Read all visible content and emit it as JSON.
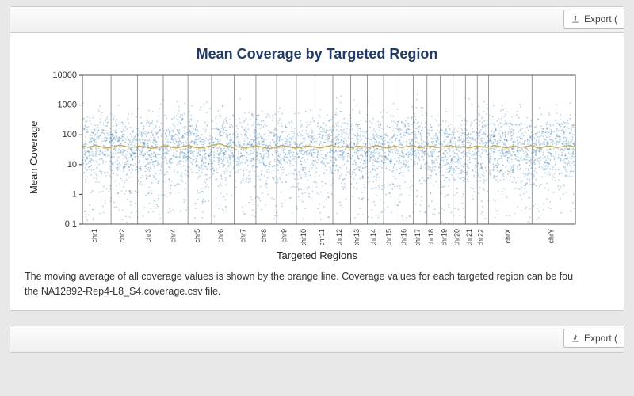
{
  "export_label": "Export (",
  "chart": {
    "type": "scatter",
    "title": "Mean Coverage by Targeted Region",
    "title_color": "#1f3a6e",
    "title_fontsize": 18,
    "ylabel": "Mean Coverage",
    "xlabel": "Targeted Regions",
    "yscale": "log",
    "ylim": [
      0.1,
      10000
    ],
    "yticks": [
      0.1,
      1,
      10,
      100,
      1000,
      10000
    ],
    "ytick_labels": [
      "0.1",
      "1",
      "10",
      "100",
      "1000",
      "10000"
    ],
    "chromosomes": [
      "chr1",
      "chr2",
      "chr3",
      "chr4",
      "chr5",
      "chr6",
      "chr7",
      "chr8",
      "chr9",
      "chr10",
      "chr11",
      "chr12",
      "chr13",
      "chr14",
      "chr15",
      "chr16",
      "chr17",
      "chr18",
      "chr19",
      "chr20",
      "chr21",
      "chr22",
      "chrX",
      "chrY"
    ],
    "chr_boundaries_x": [
      0.058,
      0.112,
      0.164,
      0.214,
      0.262,
      0.308,
      0.352,
      0.394,
      0.434,
      0.472,
      0.508,
      0.544,
      0.578,
      0.611,
      0.642,
      0.671,
      0.699,
      0.726,
      0.752,
      0.777,
      0.801,
      0.824,
      0.912,
      1.0
    ],
    "point_color": "#2b7bba",
    "point_opacity": 0.35,
    "point_radius": 0.9,
    "n_points": 5200,
    "avg_line_color": "#c9a84a",
    "avg_line_width": 1.4,
    "avg_line_y": [
      42,
      38,
      44,
      40,
      36,
      40,
      45,
      40,
      38,
      42,
      40,
      35,
      38,
      42,
      40,
      36,
      40,
      44,
      38,
      36,
      40,
      45,
      50,
      42,
      38,
      40,
      36,
      40,
      42,
      38,
      34,
      40,
      44,
      40,
      36,
      38,
      42,
      40,
      36,
      40,
      44,
      38,
      40,
      36,
      42,
      40,
      38,
      44,
      40,
      36,
      42,
      38,
      40,
      44,
      36,
      40,
      42,
      38,
      40,
      44,
      38,
      40,
      36,
      42,
      40,
      38,
      44,
      40,
      36,
      42,
      38,
      40,
      44,
      36,
      40,
      42,
      38,
      40,
      44,
      38
    ],
    "background_color": "#ffffff",
    "plot_border_color": "#555555",
    "grid_line_color": "#555555",
    "axis_fontsize": 11
  },
  "caption_line1": "The moving average of all coverage values is shown by the orange line. Coverage values for each targeted region can be fou",
  "caption_line2": "the NA12892-Rep4-L8_S4.coverage.csv file."
}
